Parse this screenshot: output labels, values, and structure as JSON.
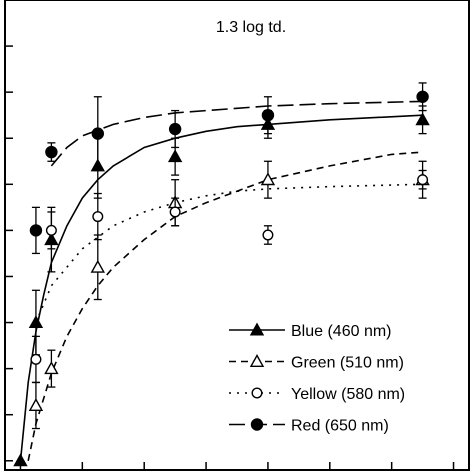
{
  "chart_data": {
    "type": "line",
    "title": "1.3 log td.",
    "xlabel": "",
    "ylabel": "",
    "xlim": [
      -1,
      29
    ],
    "ylim": [
      -2,
      100
    ],
    "grid": false,
    "legend_position": "bottom-right",
    "x_tick_values": [
      0,
      4,
      8,
      12,
      16,
      20,
      24,
      28
    ],
    "y_tick_values": [
      0,
      10,
      20,
      30,
      40,
      50,
      60,
      70,
      80,
      90,
      100
    ],
    "series": [
      {
        "name": "Blue (460 nm)",
        "color": "#000000",
        "line_style": "solid",
        "marker": "filled-triangle",
        "points": [
          {
            "x": 0,
            "y": 0,
            "err": 0
          },
          {
            "x": 1,
            "y": 30,
            "err": 7
          },
          {
            "x": 2,
            "y": 48,
            "err": 7
          },
          {
            "x": 5,
            "y": 64,
            "err": 7
          },
          {
            "x": 10,
            "y": 66,
            "err": 4
          },
          {
            "x": 16,
            "y": 73,
            "err": 3
          },
          {
            "x": 26,
            "y": 74,
            "err": 3
          }
        ],
        "curve": [
          [
            0,
            0
          ],
          [
            0.5,
            17
          ],
          [
            1,
            28
          ],
          [
            1.5,
            36
          ],
          [
            2,
            43
          ],
          [
            3,
            51
          ],
          [
            4,
            57
          ],
          [
            5,
            61
          ],
          [
            6,
            64
          ],
          [
            8,
            68
          ],
          [
            10,
            70
          ],
          [
            12,
            71.5
          ],
          [
            14,
            72.5
          ],
          [
            16,
            73
          ],
          [
            20,
            74
          ],
          [
            26,
            75
          ]
        ]
      },
      {
        "name": "Green (510 nm)",
        "color": "#000000",
        "line_style": "dashed",
        "marker": "open-triangle",
        "points": [
          {
            "x": 1,
            "y": 12,
            "err": 5
          },
          {
            "x": 2,
            "y": 20,
            "err": 4
          },
          {
            "x": 5,
            "y": 42,
            "err": 7
          },
          {
            "x": 10,
            "y": 56,
            "err": 5
          },
          {
            "x": 16,
            "y": 61,
            "err": 4
          },
          {
            "x": 26,
            "y": 61,
            "err": 4
          }
        ],
        "curve": [
          [
            0.5,
            0
          ],
          [
            1,
            8
          ],
          [
            2,
            19
          ],
          [
            3,
            27
          ],
          [
            4,
            33
          ],
          [
            5,
            38
          ],
          [
            6,
            42
          ],
          [
            8,
            48
          ],
          [
            10,
            53
          ],
          [
            12,
            56
          ],
          [
            14,
            58.5
          ],
          [
            16,
            61
          ],
          [
            20,
            64
          ],
          [
            24,
            66.5
          ],
          [
            26,
            67
          ]
        ]
      },
      {
        "name": "Yellow (580 nm)",
        "color": "#000000",
        "line_style": "dotted",
        "marker": "open-circle",
        "points": [
          {
            "x": 1,
            "y": 22,
            "err": 5
          },
          {
            "x": 2,
            "y": 50,
            "err": 4
          },
          {
            "x": 5,
            "y": 53,
            "err": 5
          },
          {
            "x": 10,
            "y": 54,
            "err": 3
          },
          {
            "x": 16,
            "y": 49,
            "err": 2
          },
          {
            "x": 26,
            "y": 61,
            "err": 2
          }
        ],
        "curve": [
          [
            1,
            30
          ],
          [
            2,
            38
          ],
          [
            4,
            46
          ],
          [
            6,
            51
          ],
          [
            8,
            54
          ],
          [
            10,
            56
          ],
          [
            12,
            57.5
          ],
          [
            14,
            58.5
          ],
          [
            16,
            59
          ],
          [
            20,
            59.5
          ],
          [
            26,
            60
          ]
        ]
      },
      {
        "name": "Red (650 nm)",
        "color": "#000000",
        "line_style": "long-dashed",
        "marker": "filled-circle",
        "points": [
          {
            "x": 1,
            "y": 50,
            "err": 5
          },
          {
            "x": 2,
            "y": 67,
            "err": 2
          },
          {
            "x": 5,
            "y": 71,
            "err": 8
          },
          {
            "x": 10,
            "y": 72,
            "err": 4
          },
          {
            "x": 16,
            "y": 75,
            "err": 4
          },
          {
            "x": 26,
            "y": 79,
            "err": 3
          }
        ],
        "curve": [
          [
            2,
            64
          ],
          [
            3,
            68
          ],
          [
            4,
            70.5
          ],
          [
            6,
            73
          ],
          [
            8,
            74.5
          ],
          [
            10,
            75.5
          ],
          [
            12,
            76
          ],
          [
            14,
            76.5
          ],
          [
            16,
            77
          ],
          [
            20,
            77.5
          ],
          [
            26,
            78
          ]
        ]
      }
    ]
  }
}
